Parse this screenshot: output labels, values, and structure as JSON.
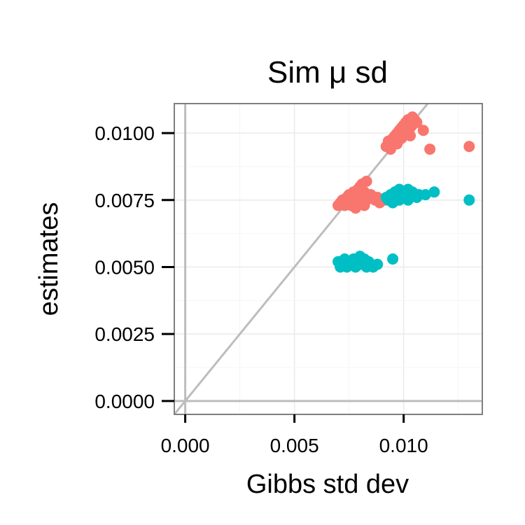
{
  "chart_data": {
    "type": "scatter",
    "title": "Sim μ sd",
    "xlabel": "Gibbs std dev",
    "ylabel": "estimates",
    "xlim": [
      -0.0005,
      0.0136
    ],
    "ylim": [
      -0.0005,
      0.0111
    ],
    "x_ticks": [
      0.0,
      0.005,
      0.01
    ],
    "x_tick_labels": [
      "0.000",
      "0.005",
      "0.010"
    ],
    "y_ticks": [
      0.0,
      0.0025,
      0.005,
      0.0075,
      0.01
    ],
    "y_tick_labels": [
      "0.0000",
      "0.0025",
      "0.0050",
      "0.0075",
      "0.0100"
    ],
    "grid": true,
    "reference_lines": [
      "y = x",
      "x = 0",
      "y = 0"
    ],
    "legend": "none",
    "series": [
      {
        "color": "#F8766D",
        "points": [
          [
            0.0092,
            0.0095
          ],
          [
            0.0093,
            0.0097
          ],
          [
            0.0094,
            0.0096
          ],
          [
            0.0095,
            0.0098
          ],
          [
            0.0094,
            0.0094
          ],
          [
            0.0096,
            0.0099
          ],
          [
            0.0097,
            0.01
          ],
          [
            0.0097,
            0.0096
          ],
          [
            0.0098,
            0.0101
          ],
          [
            0.0099,
            0.0102
          ],
          [
            0.0099,
            0.0098
          ],
          [
            0.01,
            0.0103
          ],
          [
            0.0101,
            0.0101
          ],
          [
            0.0101,
            0.0104
          ],
          [
            0.0102,
            0.0105
          ],
          [
            0.0103,
            0.0102
          ],
          [
            0.0104,
            0.0103
          ],
          [
            0.0104,
            0.0106
          ],
          [
            0.0105,
            0.0105
          ],
          [
            0.0106,
            0.0104
          ],
          [
            0.0098,
            0.0099
          ],
          [
            0.01,
            0.01
          ],
          [
            0.0102,
            0.0103
          ],
          [
            0.0103,
            0.0099
          ],
          [
            0.0096,
            0.0097
          ],
          [
            0.0109,
            0.0101
          ],
          [
            0.0112,
            0.0094
          ],
          [
            0.013,
            0.0095
          ],
          [
            0.007,
            0.0073
          ],
          [
            0.0071,
            0.0074
          ],
          [
            0.0072,
            0.0075
          ],
          [
            0.0073,
            0.0073
          ],
          [
            0.0074,
            0.0076
          ],
          [
            0.0075,
            0.0074
          ],
          [
            0.0075,
            0.0077
          ],
          [
            0.0076,
            0.0075
          ],
          [
            0.0077,
            0.0078
          ],
          [
            0.0077,
            0.0073
          ],
          [
            0.0078,
            0.0076
          ],
          [
            0.0079,
            0.0079
          ],
          [
            0.0079,
            0.0074
          ],
          [
            0.008,
            0.008
          ],
          [
            0.008,
            0.0077
          ],
          [
            0.0081,
            0.0081
          ],
          [
            0.0082,
            0.0078
          ],
          [
            0.0083,
            0.0082
          ],
          [
            0.0083,
            0.0075
          ],
          [
            0.0084,
            0.0076
          ],
          [
            0.0085,
            0.0077
          ],
          [
            0.0086,
            0.0076
          ],
          [
            0.0087,
            0.0075
          ],
          [
            0.0088,
            0.0076
          ],
          [
            0.0089,
            0.0074
          ],
          [
            0.0091,
            0.0075
          ],
          [
            0.0082,
            0.0073
          ],
          [
            0.0078,
            0.0072
          ],
          [
            0.0076,
            0.0073
          ],
          [
            0.0081,
            0.0075
          ]
        ]
      },
      {
        "color": "#00BFC4",
        "points": [
          [
            0.0092,
            0.0076
          ],
          [
            0.0093,
            0.0075
          ],
          [
            0.0094,
            0.0077
          ],
          [
            0.0095,
            0.0074
          ],
          [
            0.0096,
            0.0078
          ],
          [
            0.0097,
            0.0075
          ],
          [
            0.0098,
            0.0079
          ],
          [
            0.0099,
            0.0076
          ],
          [
            0.01,
            0.0078
          ],
          [
            0.0101,
            0.0077
          ],
          [
            0.0102,
            0.0079
          ],
          [
            0.0103,
            0.0076
          ],
          [
            0.0104,
            0.0078
          ],
          [
            0.0105,
            0.0077
          ],
          [
            0.0106,
            0.0076
          ],
          [
            0.0107,
            0.0077
          ],
          [
            0.0098,
            0.0075
          ],
          [
            0.01,
            0.0076
          ],
          [
            0.0102,
            0.0075
          ],
          [
            0.0096,
            0.0076
          ],
          [
            0.011,
            0.0077
          ],
          [
            0.0114,
            0.0078
          ],
          [
            0.013,
            0.0075
          ],
          [
            0.007,
            0.0052
          ],
          [
            0.0071,
            0.005
          ],
          [
            0.0072,
            0.0051
          ],
          [
            0.0073,
            0.0053
          ],
          [
            0.0074,
            0.005
          ],
          [
            0.0075,
            0.0052
          ],
          [
            0.0076,
            0.0051
          ],
          [
            0.0077,
            0.0053
          ],
          [
            0.0078,
            0.005
          ],
          [
            0.0079,
            0.0052
          ],
          [
            0.008,
            0.0054
          ],
          [
            0.0081,
            0.0051
          ],
          [
            0.0082,
            0.0053
          ],
          [
            0.0083,
            0.005
          ],
          [
            0.0084,
            0.0052
          ],
          [
            0.0085,
            0.0051
          ],
          [
            0.0086,
            0.005
          ],
          [
            0.0088,
            0.0051
          ],
          [
            0.0095,
            0.0053
          ]
        ]
      }
    ]
  }
}
